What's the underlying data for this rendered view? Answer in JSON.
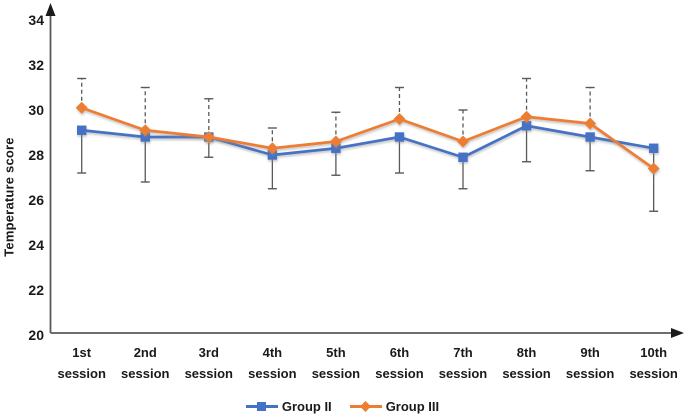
{
  "chart_data": {
    "type": "line",
    "title": "",
    "ylabel": "Temperature score",
    "xlabel": "",
    "ylim": [
      20,
      34
    ],
    "yticks": [
      20,
      22,
      24,
      26,
      28,
      30,
      32,
      34
    ],
    "grid": false,
    "axis_arrows": true,
    "legend_position": "bottom-center",
    "categories": [
      "1st session",
      "2nd session",
      "3rd session",
      "4th session",
      "5th session",
      "6th session",
      "7th session",
      "8th session",
      "9th session",
      "10th session"
    ],
    "series": [
      {
        "name": "Group II",
        "color": "#4472C4",
        "marker": "square",
        "values": [
          29.1,
          28.8,
          28.8,
          28.0,
          28.3,
          28.8,
          27.9,
          29.3,
          28.8,
          28.3
        ],
        "error_low": [
          27.2,
          26.8,
          27.9,
          26.5,
          27.1,
          27.2,
          26.5,
          27.7,
          27.3,
          25.5
        ],
        "error_low_style": "solid"
      },
      {
        "name": "Group III",
        "color": "#ED7D31",
        "marker": "diamond",
        "values": [
          30.1,
          29.1,
          28.8,
          28.3,
          28.6,
          29.6,
          28.6,
          29.7,
          29.4,
          27.4
        ],
        "error_high": [
          31.4,
          31.0,
          30.5,
          29.2,
          29.9,
          31.0,
          30.0,
          31.4,
          31.0,
          null
        ],
        "error_high_style": "dashed"
      }
    ],
    "error_bar_color": "#595959",
    "axis_color": "#595959",
    "text_color": "#1a1a1a",
    "background": "#ffffff"
  }
}
